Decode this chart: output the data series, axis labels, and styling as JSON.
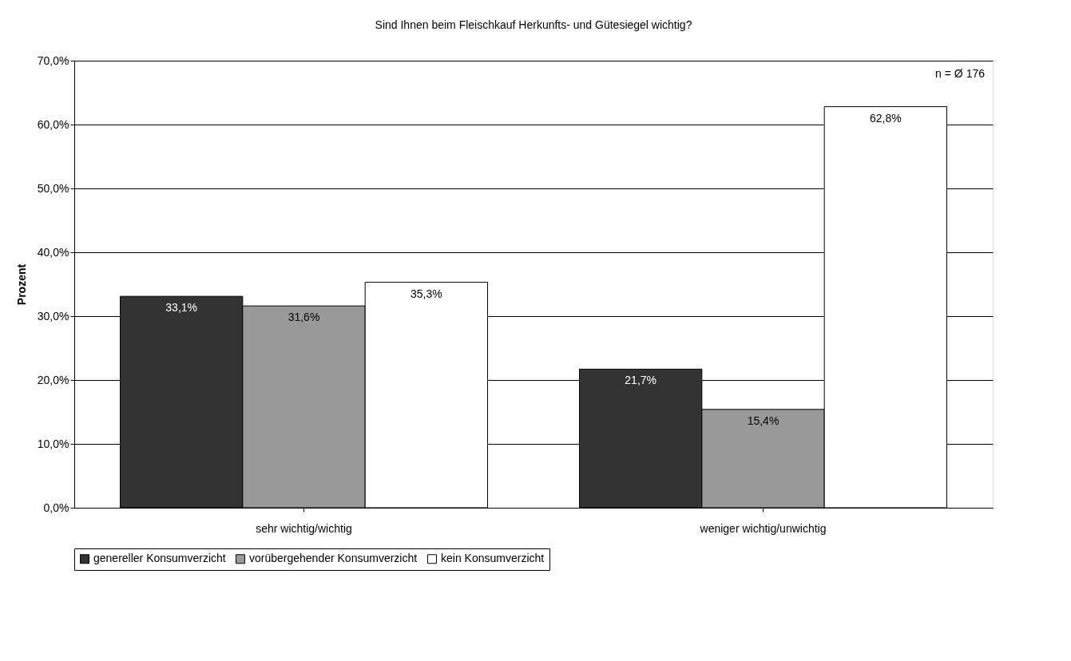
{
  "chart_data": {
    "type": "bar",
    "title": "Sind Ihnen beim Fleischkauf Herkunfts- und Gütesiegel wichtig?",
    "ylabel": "Prozent",
    "categories": [
      "sehr wichtig/wichtig",
      "weniger wichtig/unwichtig"
    ],
    "series": [
      {
        "name": "genereller Konsumverzicht",
        "color": "#333333",
        "values": [
          33.1,
          21.7
        ],
        "value_labels": [
          "33,1%",
          "21,7%"
        ]
      },
      {
        "name": "vorübergehender Konsumverzicht",
        "color": "#999999",
        "values": [
          31.6,
          15.4
        ],
        "value_labels": [
          "31,6%",
          "15,4%"
        ]
      },
      {
        "name": "kein Konsumverzicht",
        "color": "#ffffff",
        "values": [
          35.3,
          62.8
        ],
        "value_labels": [
          "35,3%",
          "62,8%"
        ]
      }
    ],
    "ylim": [
      0,
      70
    ],
    "yticks": [
      {
        "value": 0,
        "label": "0,0%"
      },
      {
        "value": 10,
        "label": "10,0%"
      },
      {
        "value": 20,
        "label": "20,0%"
      },
      {
        "value": 30,
        "label": "30,0%"
      },
      {
        "value": 40,
        "label": "40,0%"
      },
      {
        "value": 50,
        "label": "50,0%"
      },
      {
        "value": 60,
        "label": "60,0%"
      },
      {
        "value": 70,
        "label": "70,0%"
      }
    ],
    "grid": "y",
    "legend": "bottom",
    "annotations": [
      "n = Ø 176"
    ]
  }
}
